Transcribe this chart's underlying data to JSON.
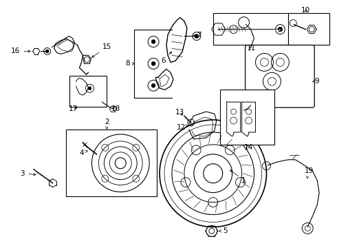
{
  "bg_color": "#ffffff",
  "fig_width": 4.9,
  "fig_height": 3.6,
  "dpi": 100,
  "line_color": "#000000",
  "label_fontsize": 7.5
}
